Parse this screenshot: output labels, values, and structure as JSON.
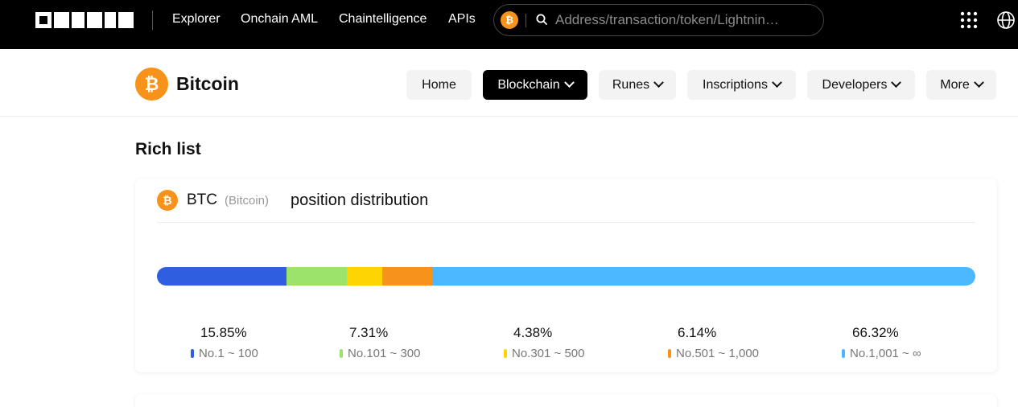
{
  "topbar": {
    "brand": "OKLINK",
    "nav": [
      "Explorer",
      "Onchain AML",
      "Chaintelligence",
      "APIs"
    ],
    "search_placeholder": "Address/transaction/token/Lightnin…",
    "search_coin_glyph": "₿"
  },
  "chain": {
    "name": "Bitcoin",
    "logo_glyph": "₿",
    "logo_color": "#f7931a"
  },
  "subnav": [
    {
      "label": "Home",
      "dropdown": false,
      "active": false
    },
    {
      "label": "Blockchain",
      "dropdown": true,
      "active": true
    },
    {
      "label": "Runes",
      "dropdown": true,
      "active": false
    },
    {
      "label": "Inscriptions",
      "dropdown": true,
      "active": false
    },
    {
      "label": "Developers",
      "dropdown": true,
      "active": false
    },
    {
      "label": "More",
      "dropdown": true,
      "active": false
    }
  ],
  "page": {
    "title": "Rich list"
  },
  "distribution": {
    "symbol": "BTC",
    "name": "(Bitcoin)",
    "title": "position distribution",
    "segments": [
      {
        "percent_label": "15.85%",
        "value": 15.85,
        "range": "No.1 ~ 100",
        "color": "#2f5fe0"
      },
      {
        "percent_label": "7.31%",
        "value": 7.31,
        "range": "No.101 ~ 300",
        "color": "#9be36b"
      },
      {
        "percent_label": "4.38%",
        "value": 4.38,
        "range": "No.301 ~ 500",
        "color": "#ffd400"
      },
      {
        "percent_label": "6.14%",
        "value": 6.14,
        "range": "No.501 ~ 1,000",
        "color": "#f7931a"
      },
      {
        "percent_label": "66.32%",
        "value": 66.32,
        "range": "No.1,001 ~ ∞",
        "color": "#4cb8ff"
      }
    ]
  }
}
